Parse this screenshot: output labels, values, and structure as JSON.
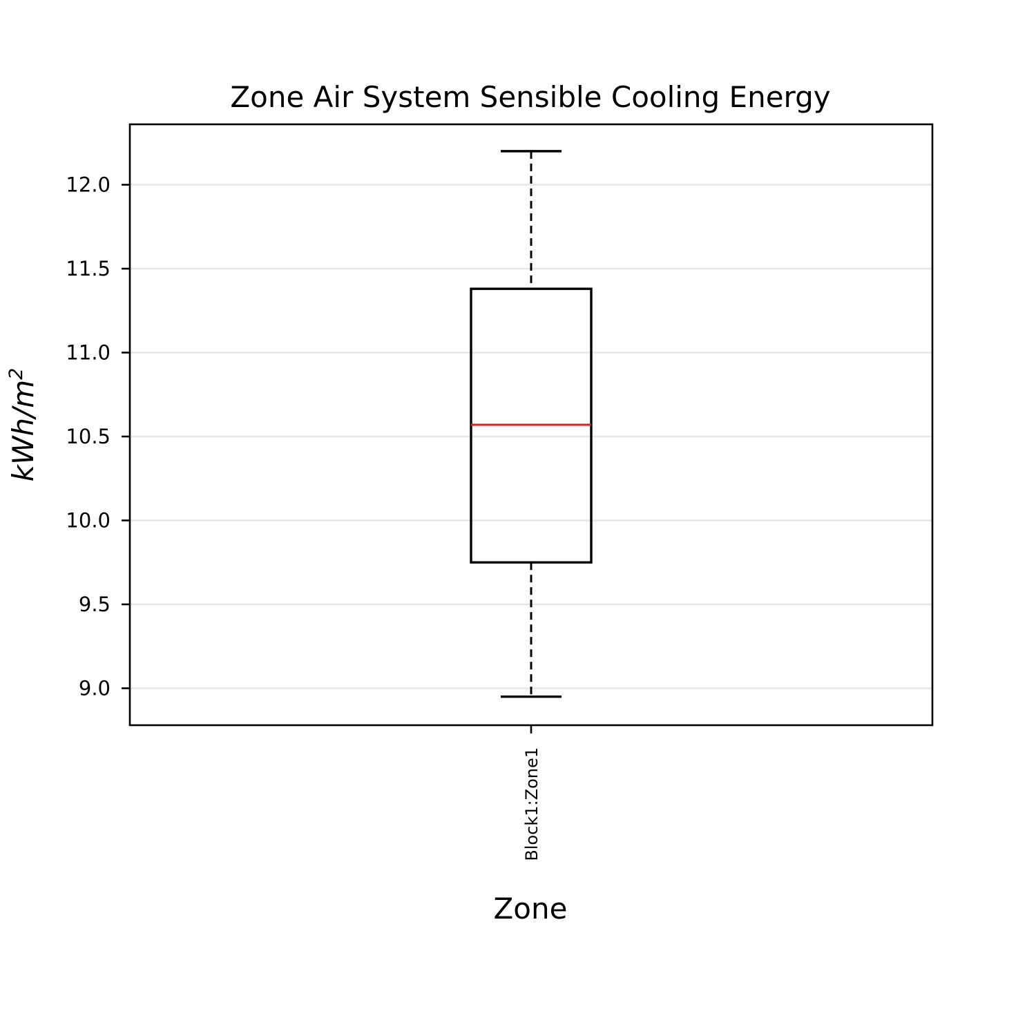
{
  "chart_data": {
    "type": "box",
    "title": "Zone Air System Sensible Cooling Energy",
    "xlabel": "Zone",
    "ylabel_base": "kWh/m",
    "ylabel_sup": "2",
    "categories": [
      "Block1:Zone1"
    ],
    "boxes": [
      {
        "category": "Block1:Zone1",
        "whisker_low": 8.95,
        "q1": 9.75,
        "median": 10.57,
        "q3": 11.38,
        "whisker_high": 12.2
      }
    ],
    "ylim": [
      8.78,
      12.36
    ],
    "yticks": [
      9.0,
      9.5,
      10.0,
      10.5,
      11.0,
      11.5,
      12.0
    ],
    "ytick_labels": [
      "9.0",
      "9.5",
      "10.0",
      "10.5",
      "11.0",
      "11.5",
      "12.0"
    ],
    "grid": {
      "y": true,
      "x": false
    },
    "colors": {
      "box": "#000000",
      "median": "#e41a1c",
      "grid": "#e6e6e6",
      "whisker": "#000000"
    }
  }
}
